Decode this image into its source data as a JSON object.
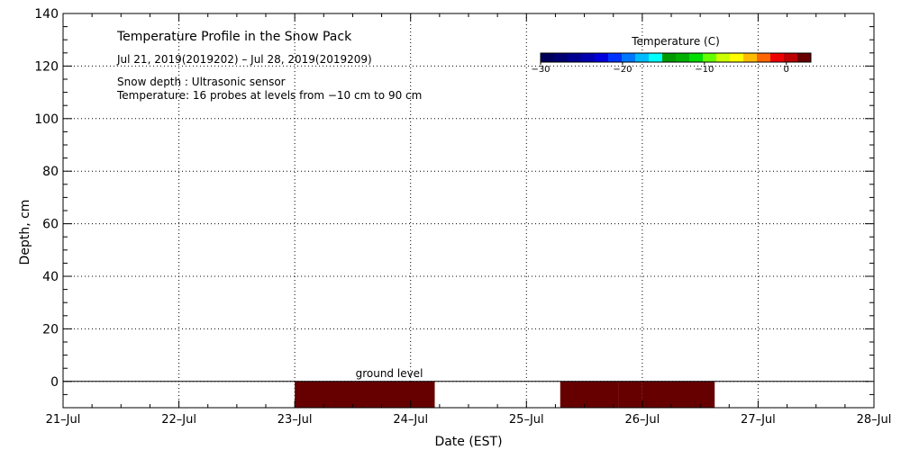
{
  "chart_data": {
    "type": "heatmap",
    "title": "Temperature Profile in the Snow Pack",
    "date_range": "Jul 21, 2019(2019202) – Jul 28, 2019(2019209)",
    "notes": [
      "Snow depth : Ultrasonic sensor",
      "Temperature: 16 probes at levels from −10 cm to 90 cm"
    ],
    "xlabel": "Date (EST)",
    "ylabel": "Depth, cm",
    "xlim": [
      "2019-07-21",
      "2019-07-28"
    ],
    "ylim": [
      -10,
      140
    ],
    "x_ticks": [
      "2019-07-21",
      "2019-07-22",
      "2019-07-23",
      "2019-07-24",
      "2019-07-25",
      "2019-07-26",
      "2019-07-27",
      "2019-07-28"
    ],
    "x_tick_labels": [
      "21–Jul",
      "22–Jul",
      "23–Jul",
      "24–Jul",
      "25–Jul",
      "26–Jul",
      "27–Jul",
      "28–Jul"
    ],
    "y_ticks": [
      0,
      20,
      40,
      60,
      80,
      100,
      120,
      140
    ],
    "y_tick_labels": [
      "0",
      "20",
      "40",
      "60",
      "80",
      "100",
      "120",
      "140"
    ],
    "grid": true,
    "ground_level": {
      "label": "ground level",
      "depth": 0,
      "x_start": "2019-07-21T00:00",
      "x_end": "2019-07-27T23:00"
    },
    "cells": [
      {
        "x_start": "2019-07-23T00:00",
        "x_end": "2019-07-24T05:00",
        "depth_top": 0,
        "depth_bottom": -10,
        "color": "#660000"
      },
      {
        "x_start": "2019-07-25T07:00",
        "x_end": "2019-07-25T19:00",
        "depth_top": 0,
        "depth_bottom": -10,
        "color": "#660000"
      },
      {
        "x_start": "2019-07-25T19:00",
        "x_end": "2019-07-26T00:00",
        "depth_top": 0,
        "depth_bottom": -10,
        "color": "#660000"
      },
      {
        "x_start": "2019-07-26T00:00",
        "x_end": "2019-07-26T15:00",
        "depth_top": 0,
        "depth_bottom": -10,
        "color": "#660000"
      }
    ],
    "colorbar": {
      "title": "Temperature (C)",
      "range": [
        -30,
        3
      ],
      "tick_values": [
        -30,
        -20,
        -10,
        0
      ],
      "tick_labels": [
        "−30",
        "−20",
        "−10",
        "0"
      ],
      "colors": [
        "#00005a",
        "#000070",
        "#000090",
        "#0000b0",
        "#0000dd",
        "#0033ff",
        "#0077ff",
        "#00bbff",
        "#00ffff",
        "#009900",
        "#00b000",
        "#00dd00",
        "#66ff00",
        "#ccff00",
        "#ffff00",
        "#ffbb00",
        "#ff6600",
        "#ee0000",
        "#bb0000",
        "#660000"
      ]
    }
  }
}
